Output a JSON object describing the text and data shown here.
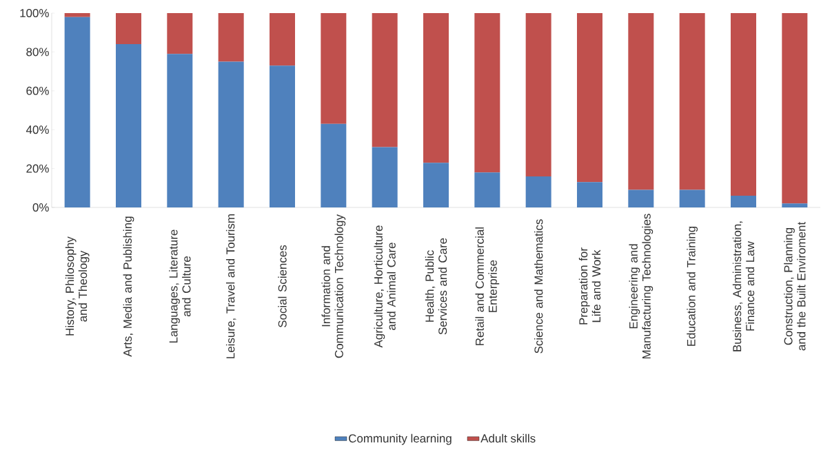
{
  "chart_data": {
    "type": "bar",
    "stacked": true,
    "legend": "bottom",
    "categories": [
      "History, Philosophy and Theology",
      "Arts, Media and Publishing",
      "Languages, Literature and Culture",
      "Leisure, Travel and Tourism",
      "Social Sciences",
      "Information and Communication Technology",
      "Agriculture, Horticulture and Animal Care",
      "Health, Public Services and Care",
      "Retail and Commercial Enterprise",
      "Science and Mathematics",
      "Preparation for Life and Work",
      "Engineering and Manufacturing Technologies",
      "Education and Training",
      "Business, Administration, Finance and Law",
      "Construction, Planning and the Built Enviroment"
    ],
    "series": [
      {
        "name": "Community learning",
        "color": "#4f81bd",
        "values": [
          98,
          84,
          79,
          75,
          73,
          43,
          31,
          23,
          18,
          16,
          13,
          9,
          9,
          6,
          2
        ]
      },
      {
        "name": "Adult skills",
        "color": "#c0504d",
        "values": [
          2,
          16,
          21,
          25,
          27,
          57,
          69,
          77,
          82,
          84,
          87,
          91,
          91,
          94,
          98
        ]
      }
    ],
    "ylim": [
      0,
      100
    ],
    "yticks": [
      {
        "value": 0,
        "label": "0%"
      },
      {
        "value": 20,
        "label": "20%"
      },
      {
        "value": 40,
        "label": "40%"
      },
      {
        "value": 60,
        "label": "60%"
      },
      {
        "value": 80,
        "label": "80%"
      },
      {
        "value": 100,
        "label": "100%"
      }
    ]
  }
}
